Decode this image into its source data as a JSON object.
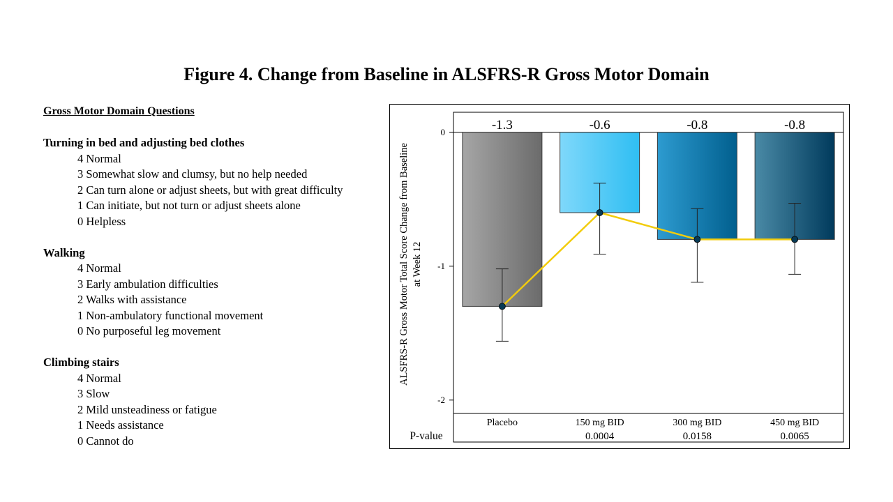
{
  "title": "Figure 4. Change from Baseline in ALSFRS-R Gross Motor Domain",
  "questions": {
    "heading": "Gross Motor Domain Questions",
    "sections": [
      {
        "title": "Turning in bed and adjusting bed clothes",
        "options": [
          "4 Normal",
          "3 Somewhat slow and clumsy, but no help needed",
          "2 Can turn alone or adjust sheets, but with great difficulty",
          "1 Can initiate,  but not turn or adjust sheets alone",
          "0 Helpless"
        ]
      },
      {
        "title": "Walking",
        "options": [
          "4 Normal",
          "3 Early ambulation difficulties",
          "2 Walks with assistance",
          "1 Non-ambulatory functional movement",
          "0 No purposeful leg movement"
        ]
      },
      {
        "title": "Climbing stairs",
        "options": [
          "4 Normal",
          "3 Slow",
          "2 Mild unsteadiness or fatigue",
          "1 Needs assistance",
          "0 Cannot do"
        ]
      }
    ]
  },
  "chart_data": {
    "type": "bar",
    "ylabel_lines": [
      "ALSFRS-R Gross Motor Total Score Change from Baseline",
      "at Week 12"
    ],
    "ylim": [
      -2.1,
      0.15
    ],
    "yticks": [
      0,
      -1,
      -2
    ],
    "categories": [
      "Placebo",
      "150 mg BID",
      "300 mg BID",
      "450 mg BID"
    ],
    "values": [
      -1.3,
      -0.6,
      -0.8,
      -0.8
    ],
    "value_labels": [
      "-1.3",
      "-0.6",
      "-0.8",
      "-0.8"
    ],
    "error_low": [
      -1.56,
      -0.91,
      -1.12,
      -1.06
    ],
    "error_high": [
      -1.02,
      -0.38,
      -0.57,
      -0.53
    ],
    "pvalue_label": "P-value",
    "pvalues": [
      "",
      "0.0004",
      "0.0158",
      "0.0065"
    ],
    "bar_colors": [
      {
        "from": "#a6a6a6",
        "to": "#6b6b6b"
      },
      {
        "from": "#7fd8fb",
        "to": "#2fbef2"
      },
      {
        "from": "#2d9bd0",
        "to": "#015f8e"
      },
      {
        "from": "#4a8aa6",
        "to": "#003a5c"
      }
    ],
    "line_color": "#f2cc0c",
    "marker_color": "#073a55",
    "grid": false
  }
}
